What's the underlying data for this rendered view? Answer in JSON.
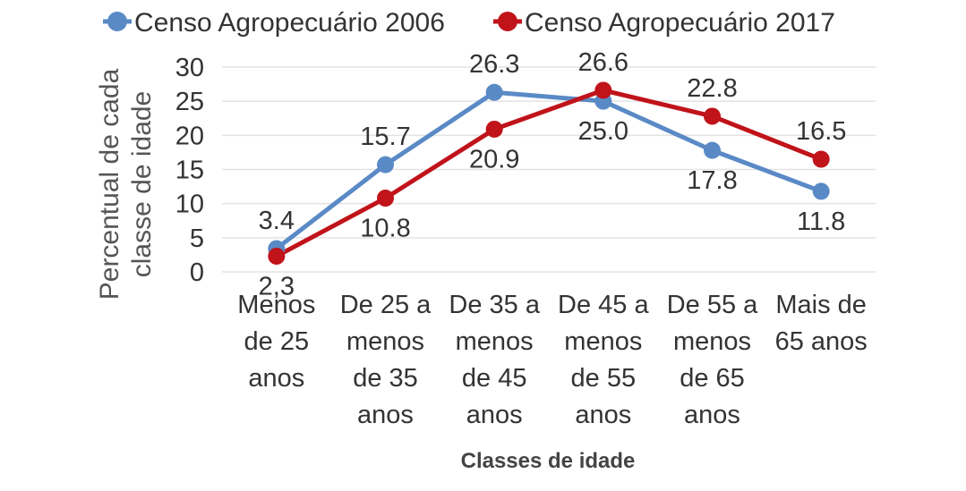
{
  "chart_data": {
    "type": "line",
    "categories": [
      [
        "Menos",
        "de 25",
        "anos"
      ],
      [
        "De 25 a",
        "menos",
        "de 35",
        "anos"
      ],
      [
        "De 35 a",
        "menos",
        "de 45",
        "anos"
      ],
      [
        "De 45 a",
        "menos",
        "de 55",
        "anos"
      ],
      [
        "De 55 a",
        "menos",
        "de 65",
        "anos"
      ],
      [
        "Mais de",
        "65 anos"
      ]
    ],
    "series": [
      {
        "name": "Censo Agropecuário 2006",
        "color": "#5a8ac6",
        "values": [
          3.4,
          15.7,
          26.3,
          25.0,
          17.8,
          11.8
        ],
        "labels": [
          "3.4",
          "15.7",
          "26.3",
          "25.0",
          "17.8",
          "11.8"
        ],
        "label_pos": [
          "above",
          "above",
          "above",
          "below",
          "below",
          "below"
        ]
      },
      {
        "name": "Censo Agropecuário 2017",
        "color": "#c0131a",
        "values": [
          2.3,
          10.8,
          20.9,
          26.6,
          22.8,
          16.5
        ],
        "labels": [
          "2,3",
          "10.8",
          "20.9",
          "26.6",
          "22.8",
          "16.5"
        ],
        "label_pos": [
          "below",
          "below",
          "below",
          "above",
          "above",
          "above"
        ]
      }
    ],
    "ylabel": [
      "Percentual de cada",
      "classe de idade"
    ],
    "xlabel": "Classes de idade",
    "ylim": [
      0,
      30
    ],
    "yticks": [
      0,
      5,
      10,
      15,
      20,
      25,
      30
    ],
    "grid": true,
    "legend": "top"
  }
}
